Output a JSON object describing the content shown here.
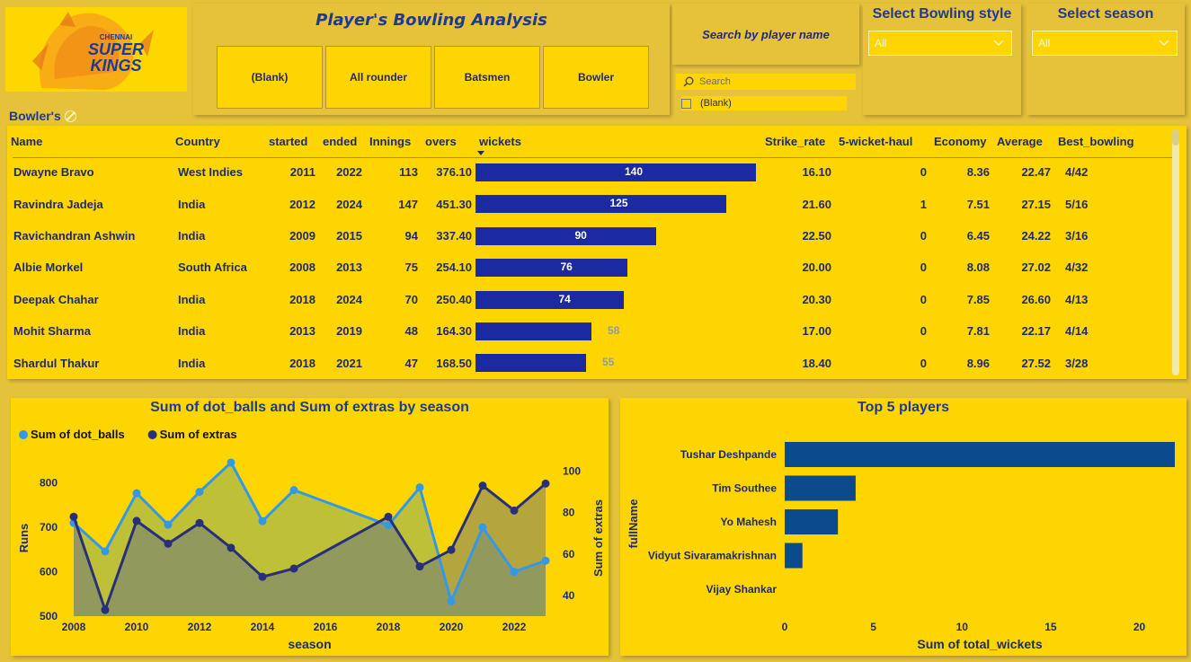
{
  "logo": {
    "line1": "CHENNAI",
    "line2": "SUPER",
    "line3": "KINGS"
  },
  "header": {
    "title": "Player's Bowling Analysis",
    "role_tiles": [
      "(Blank)",
      "All rounder",
      "Batsmen",
      "Bowler"
    ]
  },
  "search": {
    "heading": "Search by player name",
    "placeholder": "Search",
    "options": [
      "(Blank)"
    ]
  },
  "slicers": {
    "bowling_style": {
      "label": "Select Bowling style",
      "value": "All"
    },
    "season": {
      "label": "Select season",
      "value": "All"
    }
  },
  "table": {
    "label": "Bowler's",
    "columns": [
      "Name",
      "Country",
      "started",
      "ended",
      "Innings",
      "overs",
      "wickets",
      "Strike_rate",
      "5-wicket-haul",
      "Economy",
      "Average",
      "Best_bowling"
    ],
    "rows": [
      [
        "Dwayne Bravo",
        "West Indies",
        "2011",
        "2022",
        "113",
        "376.10",
        "140",
        "16.10",
        "0",
        "8.36",
        "22.47",
        "4/42"
      ],
      [
        "Ravindra Jadeja",
        "India",
        "2012",
        "2024",
        "147",
        "451.30",
        "125",
        "21.60",
        "1",
        "7.51",
        "27.15",
        "5/16"
      ],
      [
        "Ravichandran Ashwin",
        "India",
        "2009",
        "2015",
        "94",
        "337.40",
        "90",
        "22.50",
        "0",
        "6.45",
        "24.22",
        "3/16"
      ],
      [
        "Albie Morkel",
        "South Africa",
        "2008",
        "2013",
        "75",
        "254.10",
        "76",
        "20.00",
        "0",
        "8.08",
        "27.02",
        "4/32"
      ],
      [
        "Deepak Chahar",
        "India",
        "2018",
        "2024",
        "70",
        "250.40",
        "74",
        "20.30",
        "0",
        "7.85",
        "26.60",
        "4/13"
      ],
      [
        "Mohit Sharma",
        "India",
        "2013",
        "2019",
        "48",
        "164.30",
        "58",
        "17.00",
        "0",
        "7.81",
        "22.17",
        "4/14"
      ],
      [
        "Shardul Thakur",
        "India",
        "2018",
        "2021",
        "47",
        "168.50",
        "55",
        "18.40",
        "0",
        "8.96",
        "27.52",
        "3/28"
      ]
    ],
    "wickets_max": 140
  },
  "chart_data": [
    {
      "type": "line",
      "title": "Sum of dot_balls and Sum of extras by season",
      "xlabel": "season",
      "ylabel": "Runs",
      "y2label": "Sum of extras",
      "legend": "top-left",
      "x": [
        2008,
        2009,
        2010,
        2011,
        2012,
        2013,
        2014,
        2015,
        2018,
        2019,
        2020,
        2021,
        2022,
        2023
      ],
      "x_ticks": [
        2008,
        2010,
        2012,
        2014,
        2016,
        2018,
        2020,
        2022
      ],
      "ylim": [
        500,
        850
      ],
      "y_ticks": [
        500,
        600,
        700,
        800
      ],
      "y2lim": [
        30,
        105
      ],
      "y2_ticks": [
        40,
        60,
        80,
        100
      ],
      "series": [
        {
          "name": "Sum of dot_balls",
          "axis": "left",
          "color": "#3399E6",
          "values": [
            710,
            646,
            777,
            706,
            780,
            846,
            714,
            784,
            705,
            790,
            534,
            700,
            600,
            625
          ]
        },
        {
          "name": "Sum of extras",
          "axis": "right",
          "color": "#2A2F7A",
          "values": [
            78,
            33,
            76,
            65,
            75,
            63,
            49,
            53,
            78,
            54,
            62,
            93,
            81,
            94
          ]
        }
      ]
    },
    {
      "type": "bar",
      "orientation": "horizontal",
      "title": "Top 5 players",
      "xlabel": "Sum of total_wickets",
      "ylabel": "fullName",
      "xlim": [
        0,
        22
      ],
      "x_ticks": [
        0,
        5,
        10,
        15,
        20
      ],
      "categories": [
        "Tushar Deshpande",
        "Tim Southee",
        "Yo Mahesh",
        "Vidyut Sivaramakrishnan",
        "Vijay Shankar"
      ],
      "values": [
        22,
        4,
        3,
        1,
        0
      ],
      "color": "#0B4A8C"
    }
  ]
}
